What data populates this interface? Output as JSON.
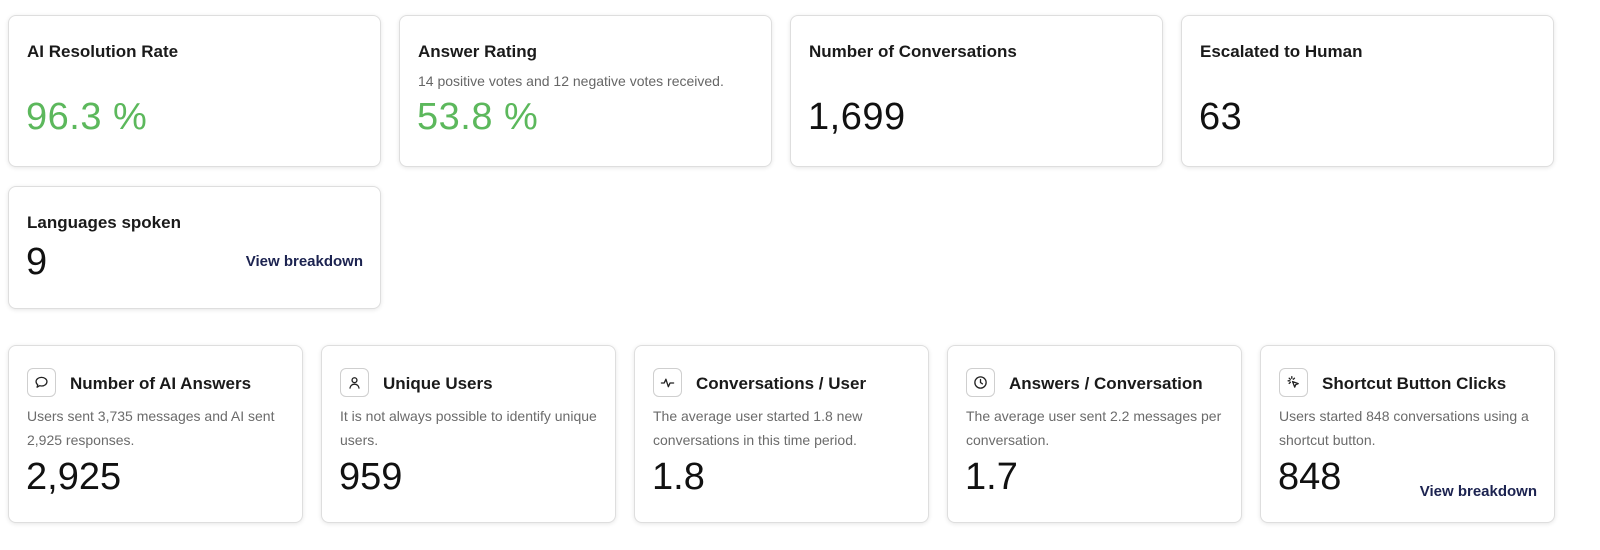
{
  "top_cards": [
    {
      "title": "AI Resolution Rate",
      "subtitle": "",
      "value": "96.3 %",
      "value_color": "#5cb85c"
    },
    {
      "title": "Answer Rating",
      "subtitle": "14 positive votes and 12 negative votes received.",
      "value": "53.8 %",
      "value_color": "#5cb85c"
    },
    {
      "title": "Number of Conversations",
      "subtitle": "",
      "value": "1,699",
      "value_color": "#111111"
    },
    {
      "title": "Escalated to Human",
      "subtitle": "",
      "value": "63",
      "value_color": "#111111"
    }
  ],
  "languages_card": {
    "title": "Languages spoken",
    "value": "9",
    "link": "View breakdown"
  },
  "bottom_cards": [
    {
      "icon": "chat-bubble-icon",
      "title": "Number of AI Answers",
      "description": "Users sent 3,735 messages and AI sent 2,925 responses.",
      "value": "2,925",
      "link": ""
    },
    {
      "icon": "user-icon",
      "title": "Unique Users",
      "description": "It is not always possible to identify unique users.",
      "value": "959",
      "link": ""
    },
    {
      "icon": "activity-icon",
      "title": "Conversations / User",
      "description": "The average user started 1.8 new conversations in this time period.",
      "value": "1.8",
      "link": ""
    },
    {
      "icon": "clock-icon",
      "title": "Answers / Conversation",
      "description": "The average user sent 2.2 messages per conversation.",
      "value": "1.7",
      "link": ""
    },
    {
      "icon": "cursor-click-icon",
      "title": "Shortcut Button Clicks",
      "description": "Users started 848 conversations using a shortcut button.",
      "value": "848",
      "link": "View breakdown"
    }
  ]
}
